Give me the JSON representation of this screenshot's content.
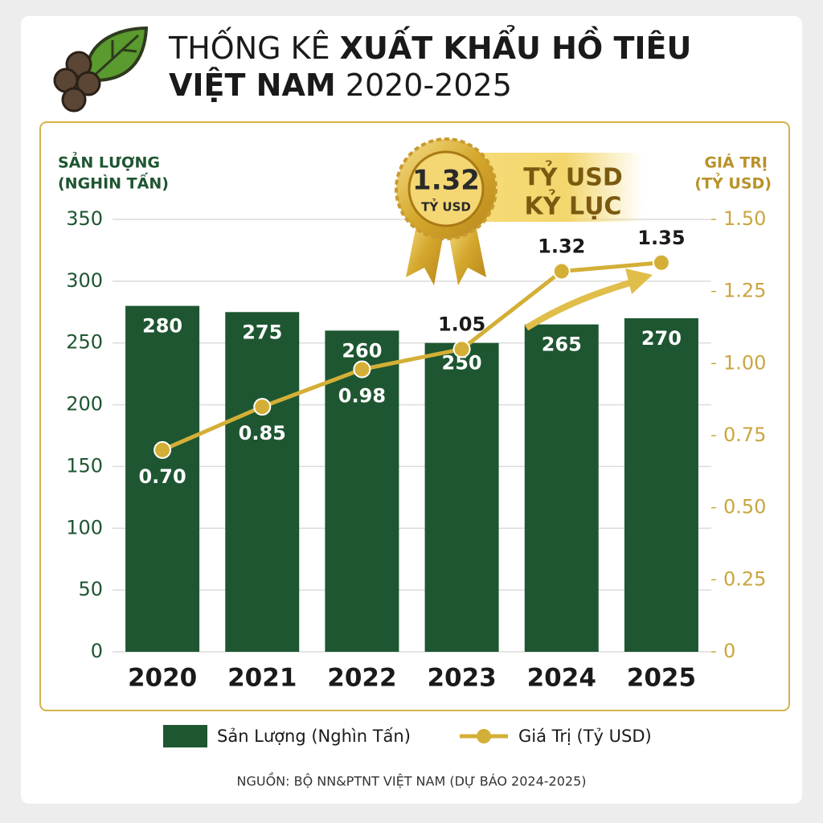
{
  "chart_data": {
    "type": "bar-line",
    "title": [
      {
        "text": "THỐNG KÊ",
        "bold": false
      },
      {
        "text": "XUẤT KHẨU HỒ TIÊU",
        "bold": true
      },
      {
        "text": "VIỆT NAM",
        "bold": true
      },
      {
        "text": "2020-2025",
        "bold": false
      }
    ],
    "y_label": [
      "SẢN LƯỢNG",
      "(NGHÌN TẤN)"
    ],
    "y2_label": [
      "GIÁ TRỊ",
      "(TỶ USD)"
    ],
    "categories": [
      "2020",
      "2021",
      "2022",
      "2023",
      "2024",
      "2025"
    ],
    "series": [
      {
        "name": "Sản Lượng (Nghìn Tấn)",
        "type": "bar",
        "color": "#1e5631",
        "values": [
          280,
          275,
          260,
          250,
          265,
          270
        ]
      },
      {
        "name": "Giá Trị (Tỷ USD)",
        "type": "line",
        "axis": "y2",
        "color": "#d4af37",
        "values": [
          0.7,
          0.85,
          0.98,
          1.05,
          1.32,
          1.35
        ],
        "value_labels": [
          "0.70",
          "0.85",
          "0.98",
          "1.05",
          "1.32",
          "1.35"
        ]
      }
    ],
    "ylim": [
      0,
      350
    ],
    "yticks": [
      0,
      50,
      100,
      150,
      200,
      250,
      300,
      350
    ],
    "y2lim": [
      0,
      1.5
    ],
    "y2ticks": [
      0,
      0.25,
      {
        "value": 0.5,
        "label": "0.50"
      },
      0.75,
      {
        "value": 1,
        "label": "1.00"
      },
      1.25,
      {
        "value": 1.5,
        "label": "1.50"
      }
    ],
    "grid": true,
    "legend": "bottom",
    "badge": {
      "value_label": "1.32",
      "unit": "TỶ USD",
      "text": [
        "TỶ USD",
        "KỶ LỤC"
      ]
    },
    "source": "NGUỒN: BỘ NN&PTNT VIỆT NAM (DỰ BÁO 2024-2025)"
  }
}
